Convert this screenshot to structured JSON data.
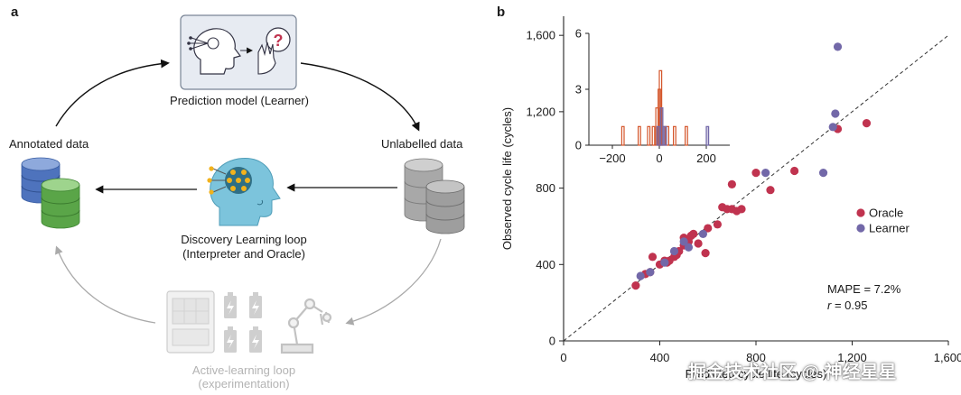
{
  "panel_a": {
    "letter": "a",
    "prediction_model": "Prediction model (Learner)",
    "unlabelled_data": "Unlabelled data",
    "annotated_data": "Annotated data",
    "discovery_line1": "Discovery Learning loop",
    "discovery_line2": "(Interpreter and Oracle)",
    "active_line1": "Active-learning loop",
    "active_line2": "(experimentation)",
    "question_mark": "?"
  },
  "panel_b": {
    "letter": "b",
    "mape": "MAPE = 7.2%",
    "r_symbol": "r",
    "r_value": " = 0.95"
  },
  "watermark": "掘金技术社区 @ 神经星星",
  "colors": {
    "oracle": "#c0334f",
    "learner": "#7268a8",
    "inset_orange": "#d4552a",
    "blue_db": "#5b7fc7",
    "green_db": "#6bb35a"
  },
  "chart_data": [
    {
      "type": "scatter",
      "xlabel": "Predicted cycle life (cycles)",
      "ylabel": "Observed cycle life (cycles)",
      "xlim": [
        0,
        1600
      ],
      "ylim": [
        0,
        1700
      ],
      "xticks": [
        "0",
        "400",
        "800",
        "1,200",
        "1,600"
      ],
      "yticks": [
        "0",
        "400",
        "800",
        "1,200",
        "1,600"
      ],
      "legend": [
        "Oracle",
        "Learner"
      ],
      "legend_position": "center-right",
      "reference_line": "y = x (dashed)",
      "series": [
        {
          "name": "Oracle",
          "points": [
            [
              300,
              290
            ],
            [
              340,
              350
            ],
            [
              360,
              360
            ],
            [
              370,
              440
            ],
            [
              400,
              400
            ],
            [
              420,
              420
            ],
            [
              430,
              410
            ],
            [
              440,
              420
            ],
            [
              460,
              440
            ],
            [
              470,
              450
            ],
            [
              480,
              470
            ],
            [
              500,
              500
            ],
            [
              500,
              540
            ],
            [
              520,
              520
            ],
            [
              530,
              550
            ],
            [
              540,
              560
            ],
            [
              560,
              510
            ],
            [
              590,
              460
            ],
            [
              600,
              590
            ],
            [
              640,
              610
            ],
            [
              660,
              700
            ],
            [
              680,
              690
            ],
            [
              700,
              820
            ],
            [
              700,
              690
            ],
            [
              720,
              680
            ],
            [
              740,
              690
            ],
            [
              800,
              880
            ],
            [
              860,
              790
            ],
            [
              960,
              890
            ],
            [
              1140,
              1110
            ],
            [
              1260,
              1140
            ]
          ]
        },
        {
          "name": "Learner",
          "points": [
            [
              320,
              340
            ],
            [
              360,
              360
            ],
            [
              420,
              410
            ],
            [
              460,
              470
            ],
            [
              500,
              520
            ],
            [
              520,
              490
            ],
            [
              580,
              560
            ],
            [
              840,
              880
            ],
            [
              1080,
              880
            ],
            [
              1120,
              1120
            ],
            [
              1130,
              1190
            ],
            [
              1140,
              1540
            ]
          ]
        }
      ]
    },
    {
      "type": "bar",
      "subtype": "histogram",
      "xlim": [
        -300,
        300
      ],
      "ylim": [
        0,
        6
      ],
      "xticks": [
        "−200",
        "0",
        "200"
      ],
      "yticks": [
        "0",
        "3",
        "6"
      ],
      "series": [
        {
          "name": "Oracle",
          "bins": [
            [
              -160,
              1
            ],
            [
              -90,
              1
            ],
            [
              -50,
              1
            ],
            [
              -30,
              1
            ],
            [
              -15,
              2
            ],
            [
              -5,
              3
            ],
            [
              0,
              4
            ],
            [
              5,
              2
            ],
            [
              15,
              1
            ],
            [
              30,
              1
            ],
            [
              60,
              1
            ],
            [
              110,
              1
            ]
          ]
        },
        {
          "name": "Learner",
          "bins": [
            [
              -10,
              1
            ],
            [
              5,
              2
            ],
            [
              20,
              1
            ],
            [
              200,
              1
            ]
          ]
        }
      ]
    }
  ]
}
